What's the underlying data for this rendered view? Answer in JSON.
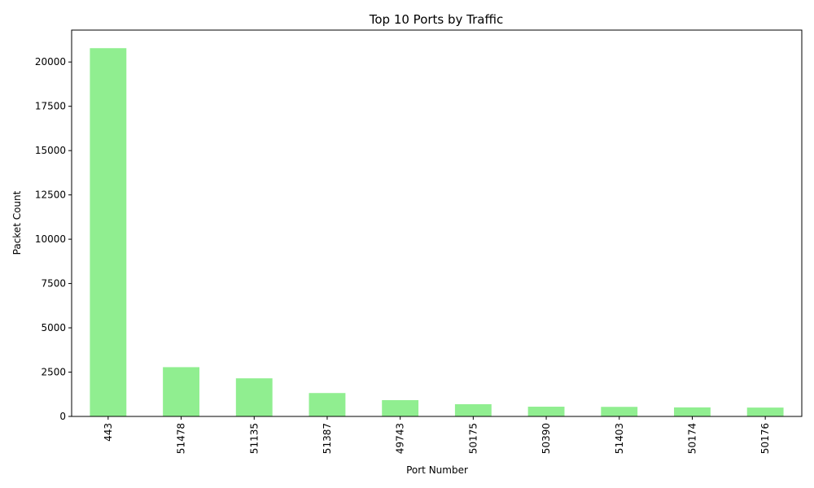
{
  "chart_data": {
    "type": "bar",
    "title": "Top 10 Ports by Traffic",
    "xlabel": "Port Number",
    "ylabel": "Packet Count",
    "categories": [
      "443",
      "51478",
      "51135",
      "51387",
      "49743",
      "50175",
      "50390",
      "51403",
      "50174",
      "50176"
    ],
    "values": [
      20780,
      2780,
      2150,
      1320,
      920,
      690,
      550,
      540,
      510,
      500
    ],
    "ylim": [
      0,
      21800
    ],
    "yticks": [
      0,
      2500,
      5000,
      7500,
      10000,
      12500,
      15000,
      17500,
      20000
    ],
    "ytick_labels": [
      "0",
      "2500",
      "5000",
      "7500",
      "10000",
      "12500",
      "15000",
      "17500",
      "20000"
    ],
    "bar_color": "#90ee90",
    "grid": false,
    "legend": "none"
  }
}
